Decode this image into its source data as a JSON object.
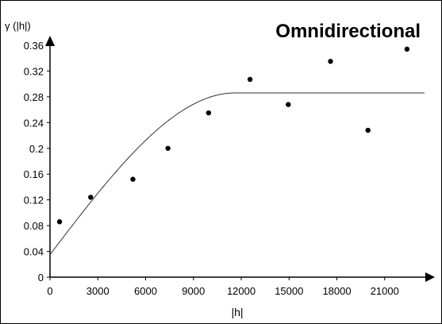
{
  "chart_data": {
    "type": "scatter",
    "title": "Omnidirectional",
    "xlabel": "|h|",
    "ylabel": "γ (|h|)",
    "xlim": [
      0,
      23500
    ],
    "ylim": [
      0,
      0.38
    ],
    "x_ticks": [
      "0",
      "3000",
      "6000",
      "9000",
      "12000",
      "15000",
      "18000",
      "21000"
    ],
    "y_ticks": [
      "0",
      "0.04",
      "0.08",
      "0.12",
      "0.16",
      "0.2",
      "0.24",
      "0.28",
      "0.32",
      "0.36"
    ],
    "grid": false,
    "series": [
      {
        "type": "scatter",
        "x": [
          600,
          2550,
          5200,
          7400,
          9950,
          12550,
          14950,
          17600,
          19950,
          22400
        ],
        "y": [
          0.086,
          0.124,
          0.152,
          0.2,
          0.255,
          0.307,
          0.268,
          0.335,
          0.228,
          0.354
        ]
      },
      {
        "type": "line",
        "model": "spherical",
        "nugget": 0.035,
        "sill": 0.286,
        "range": 11600,
        "xmax": 23500
      }
    ]
  }
}
